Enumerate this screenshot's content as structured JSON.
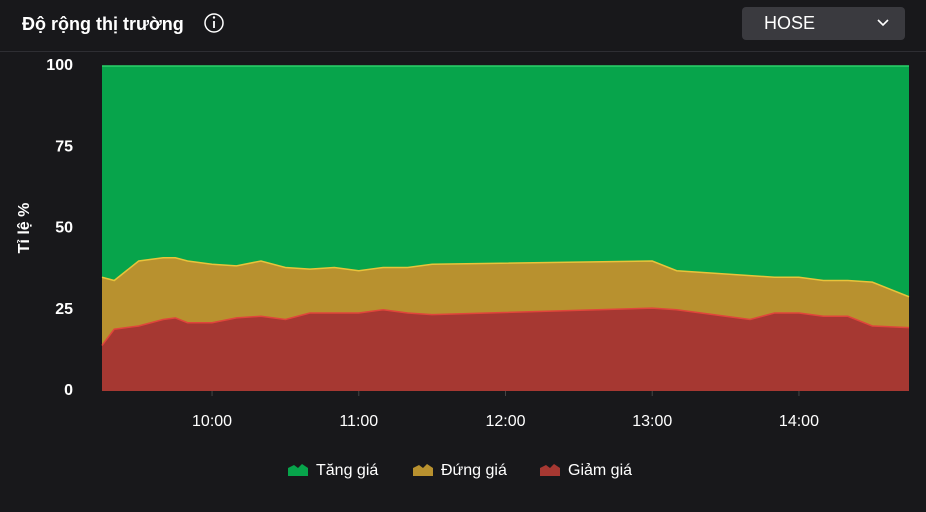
{
  "header": {
    "title": "Độ rộng thị trường",
    "exchange": "HOSE"
  },
  "chart_data": {
    "type": "stacked_area",
    "y_label": "Tỉ lệ %",
    "x": [
      "09:15",
      "09:20",
      "09:30",
      "09:40",
      "09:45",
      "09:50",
      "10:00",
      "10:10",
      "10:20",
      "10:30",
      "10:40",
      "10:50",
      "11:00",
      "11:10",
      "11:20",
      "11:30",
      "13:00",
      "13:10",
      "13:20",
      "13:30",
      "13:40",
      "13:50",
      "14:00",
      "14:10",
      "14:20",
      "14:30",
      "14:45"
    ],
    "xlim": [
      "09:15",
      "14:45"
    ],
    "xticks": [
      "10:00",
      "11:00",
      "12:00",
      "13:00",
      "14:00"
    ],
    "ylim": [
      0,
      100
    ],
    "yticks": [
      0,
      25,
      50,
      75,
      100
    ],
    "series": [
      {
        "name": "Tăng giá",
        "color": "#07a44b",
        "values": [
          65,
          66,
          60,
          59,
          59,
          60,
          61,
          61.5,
          60,
          62,
          62.5,
          62,
          63,
          62,
          62,
          61,
          60,
          63,
          63.5,
          64,
          64.5,
          65,
          65,
          66,
          66,
          66.5,
          71
        ]
      },
      {
        "name": "Đứng giá",
        "color": "#b8912f",
        "values": [
          21,
          15,
          20,
          19,
          18.5,
          19,
          18,
          16,
          17,
          16,
          13.5,
          14,
          13,
          13,
          14,
          15.5,
          14.5,
          12,
          12.5,
          13,
          13.5,
          11,
          11,
          11,
          11,
          13.5,
          9.5
        ]
      },
      {
        "name": "Giảm giá",
        "color": "#a63832",
        "values": [
          14,
          19,
          20,
          22,
          22.5,
          21,
          21,
          22.5,
          23,
          22,
          24,
          24,
          24,
          25,
          24,
          23.5,
          25.5,
          25,
          24,
          23,
          22,
          24,
          24,
          23,
          23,
          20,
          19.5
        ]
      }
    ]
  }
}
